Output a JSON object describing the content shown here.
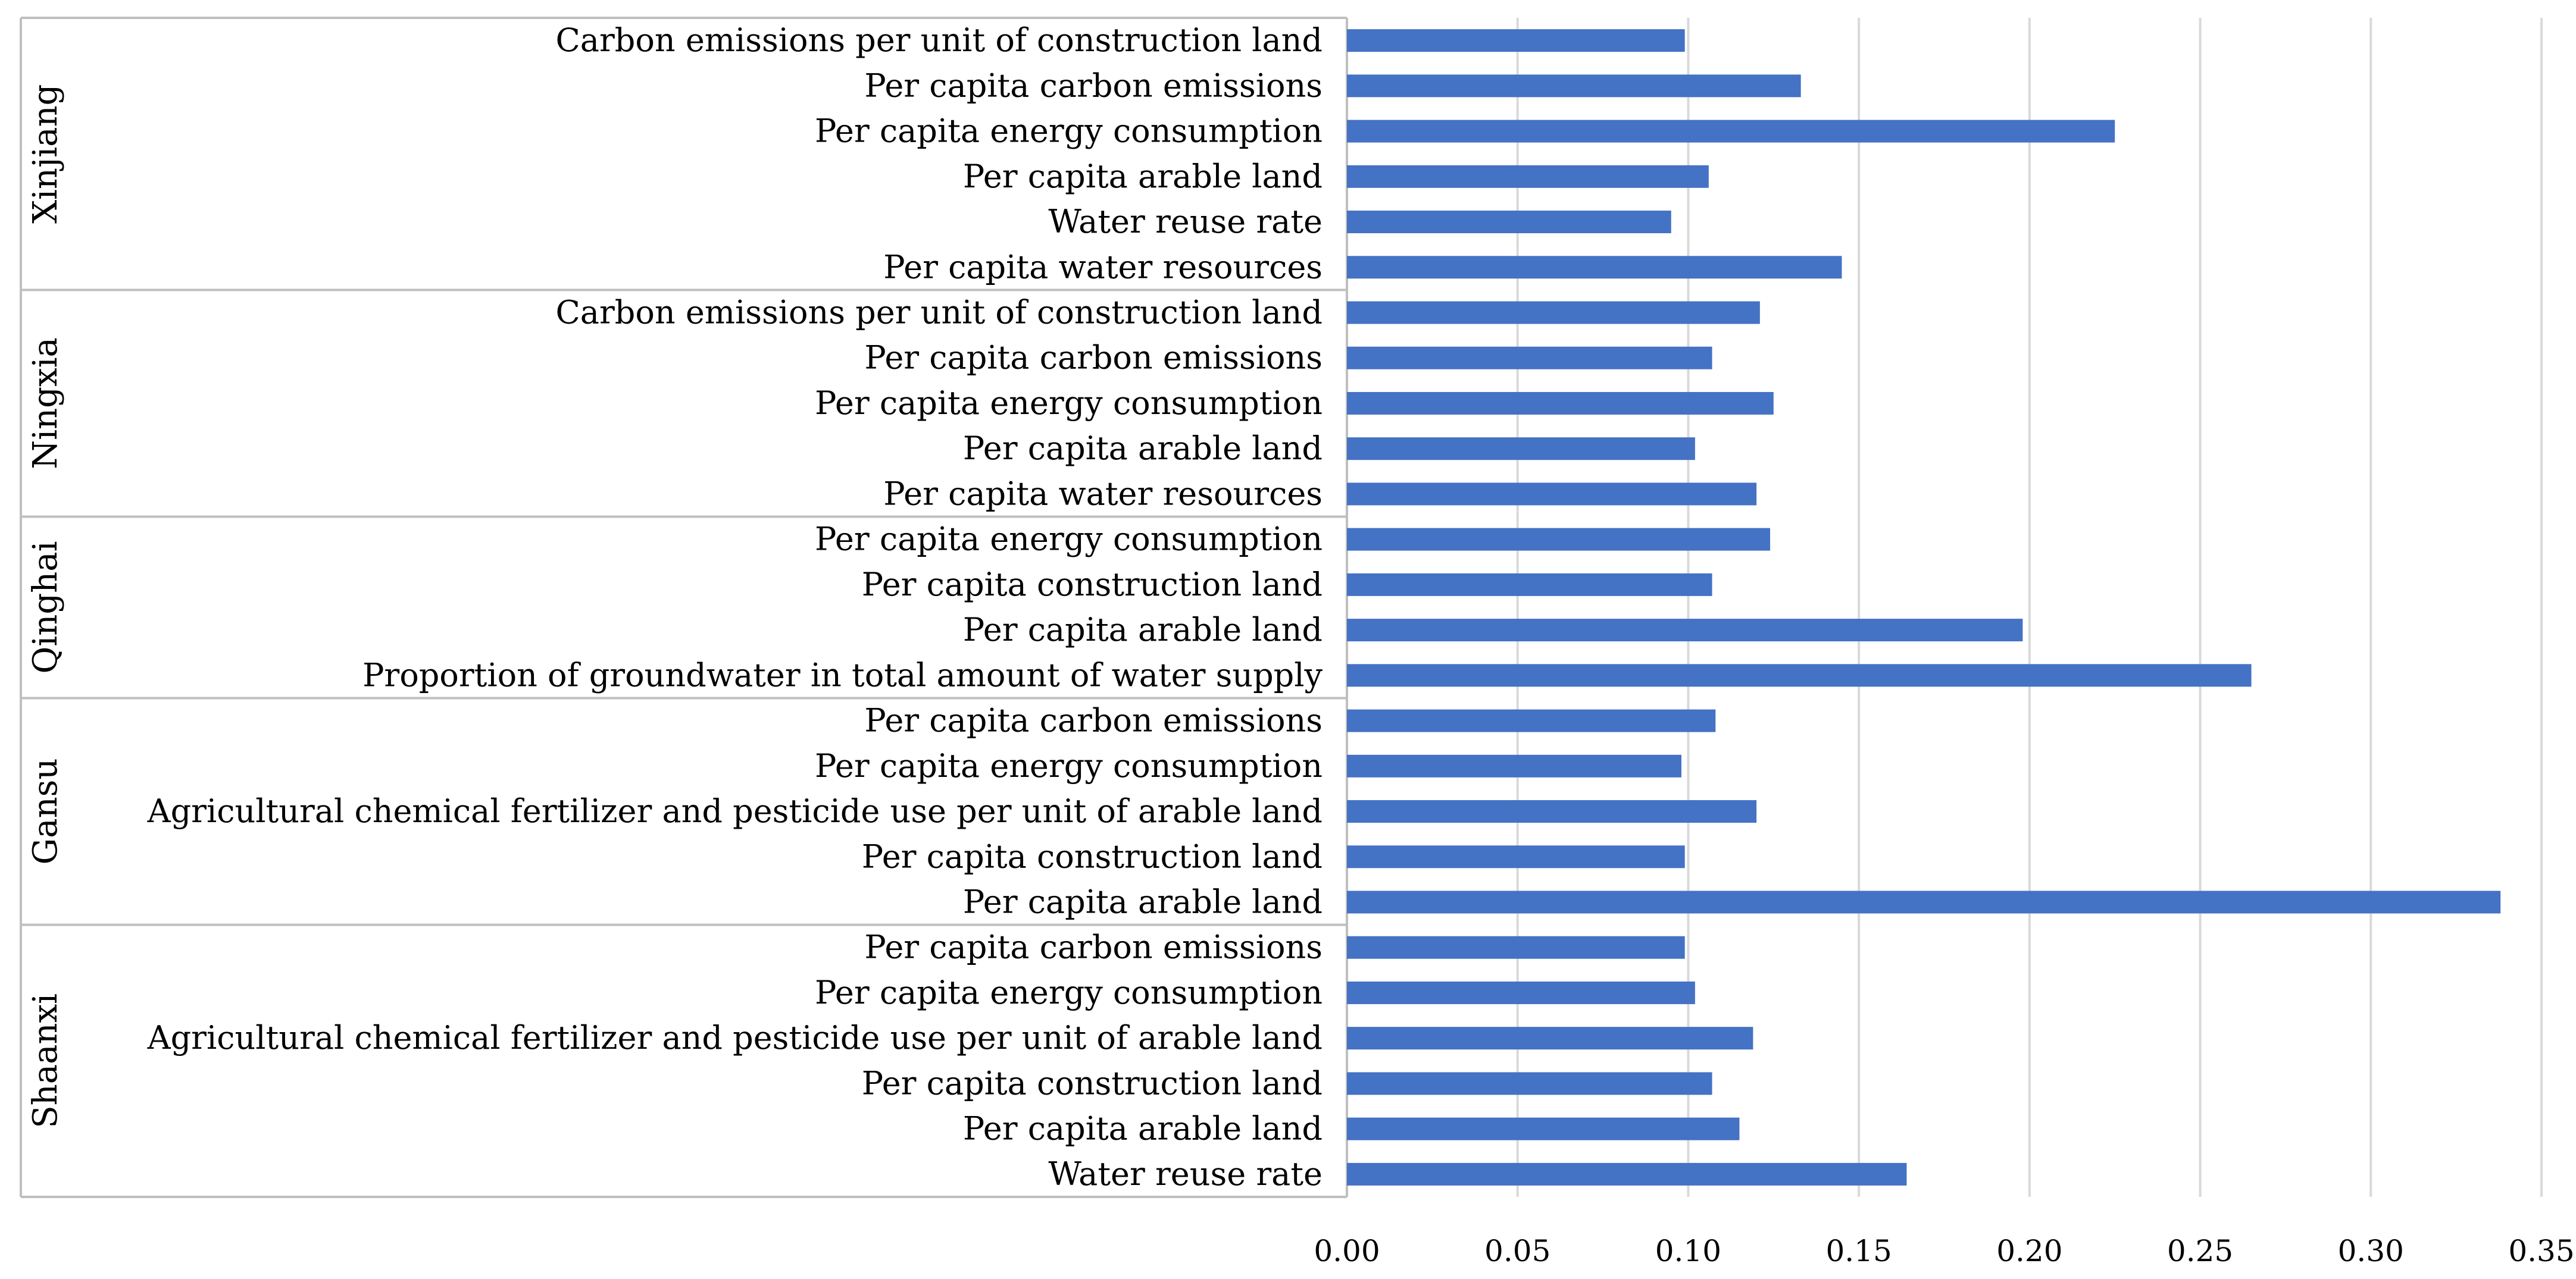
{
  "chart_data": {
    "type": "bar",
    "orientation": "horizontal",
    "bar_color": "#4472C4",
    "grid_color": "#D9D9D9",
    "axis_color": "#BFBFBF",
    "xlim": [
      0,
      0.35
    ],
    "xticks": [
      "0.00",
      "0.05",
      "0.10",
      "0.15",
      "0.20",
      "0.25",
      "0.30",
      "0.35"
    ],
    "title": "",
    "xlabel": "",
    "ylabel": "",
    "groups": [
      {
        "name": "Xinjiang",
        "items": [
          {
            "label": "Carbon emissions per unit of construction land",
            "value": 0.099
          },
          {
            "label": "Per capita carbon emissions",
            "value": 0.133
          },
          {
            "label": "Per capita energy consumption",
            "value": 0.225
          },
          {
            "label": "Per capita arable land",
            "value": 0.106
          },
          {
            "label": "Water reuse rate",
            "value": 0.095
          },
          {
            "label": "Per capita water resources",
            "value": 0.145
          }
        ]
      },
      {
        "name": "Ningxia",
        "items": [
          {
            "label": "Carbon emissions per unit of construction land",
            "value": 0.121
          },
          {
            "label": "Per capita carbon emissions",
            "value": 0.107
          },
          {
            "label": "Per capita energy consumption",
            "value": 0.125
          },
          {
            "label": "Per capita arable land",
            "value": 0.102
          },
          {
            "label": "Per capita water resources",
            "value": 0.12
          }
        ]
      },
      {
        "name": "Qinghai",
        "items": [
          {
            "label": "Per capita energy consumption",
            "value": 0.124
          },
          {
            "label": "Per capita construction land",
            "value": 0.107
          },
          {
            "label": "Per capita arable land",
            "value": 0.198
          },
          {
            "label": "Proportion of groundwater in total amount of water supply",
            "value": 0.265
          }
        ]
      },
      {
        "name": "Gansu",
        "items": [
          {
            "label": "Per capita carbon emissions",
            "value": 0.108
          },
          {
            "label": "Per capita energy consumption",
            "value": 0.098
          },
          {
            "label": "Agricultural chemical fertilizer and pesticide use per unit of arable land",
            "value": 0.12
          },
          {
            "label": "Per capita construction land",
            "value": 0.099
          },
          {
            "label": "Per capita arable land",
            "value": 0.338
          }
        ]
      },
      {
        "name": "Shaanxi",
        "items": [
          {
            "label": "Per capita carbon emissions",
            "value": 0.099
          },
          {
            "label": "Per capita energy consumption",
            "value": 0.102
          },
          {
            "label": "Agricultural chemical fertilizer and pesticide use per unit of arable land",
            "value": 0.119
          },
          {
            "label": "Per capita construction land",
            "value": 0.107
          },
          {
            "label": "Per capita arable land",
            "value": 0.115
          },
          {
            "label": "Water reuse rate",
            "value": 0.164
          }
        ]
      }
    ]
  }
}
